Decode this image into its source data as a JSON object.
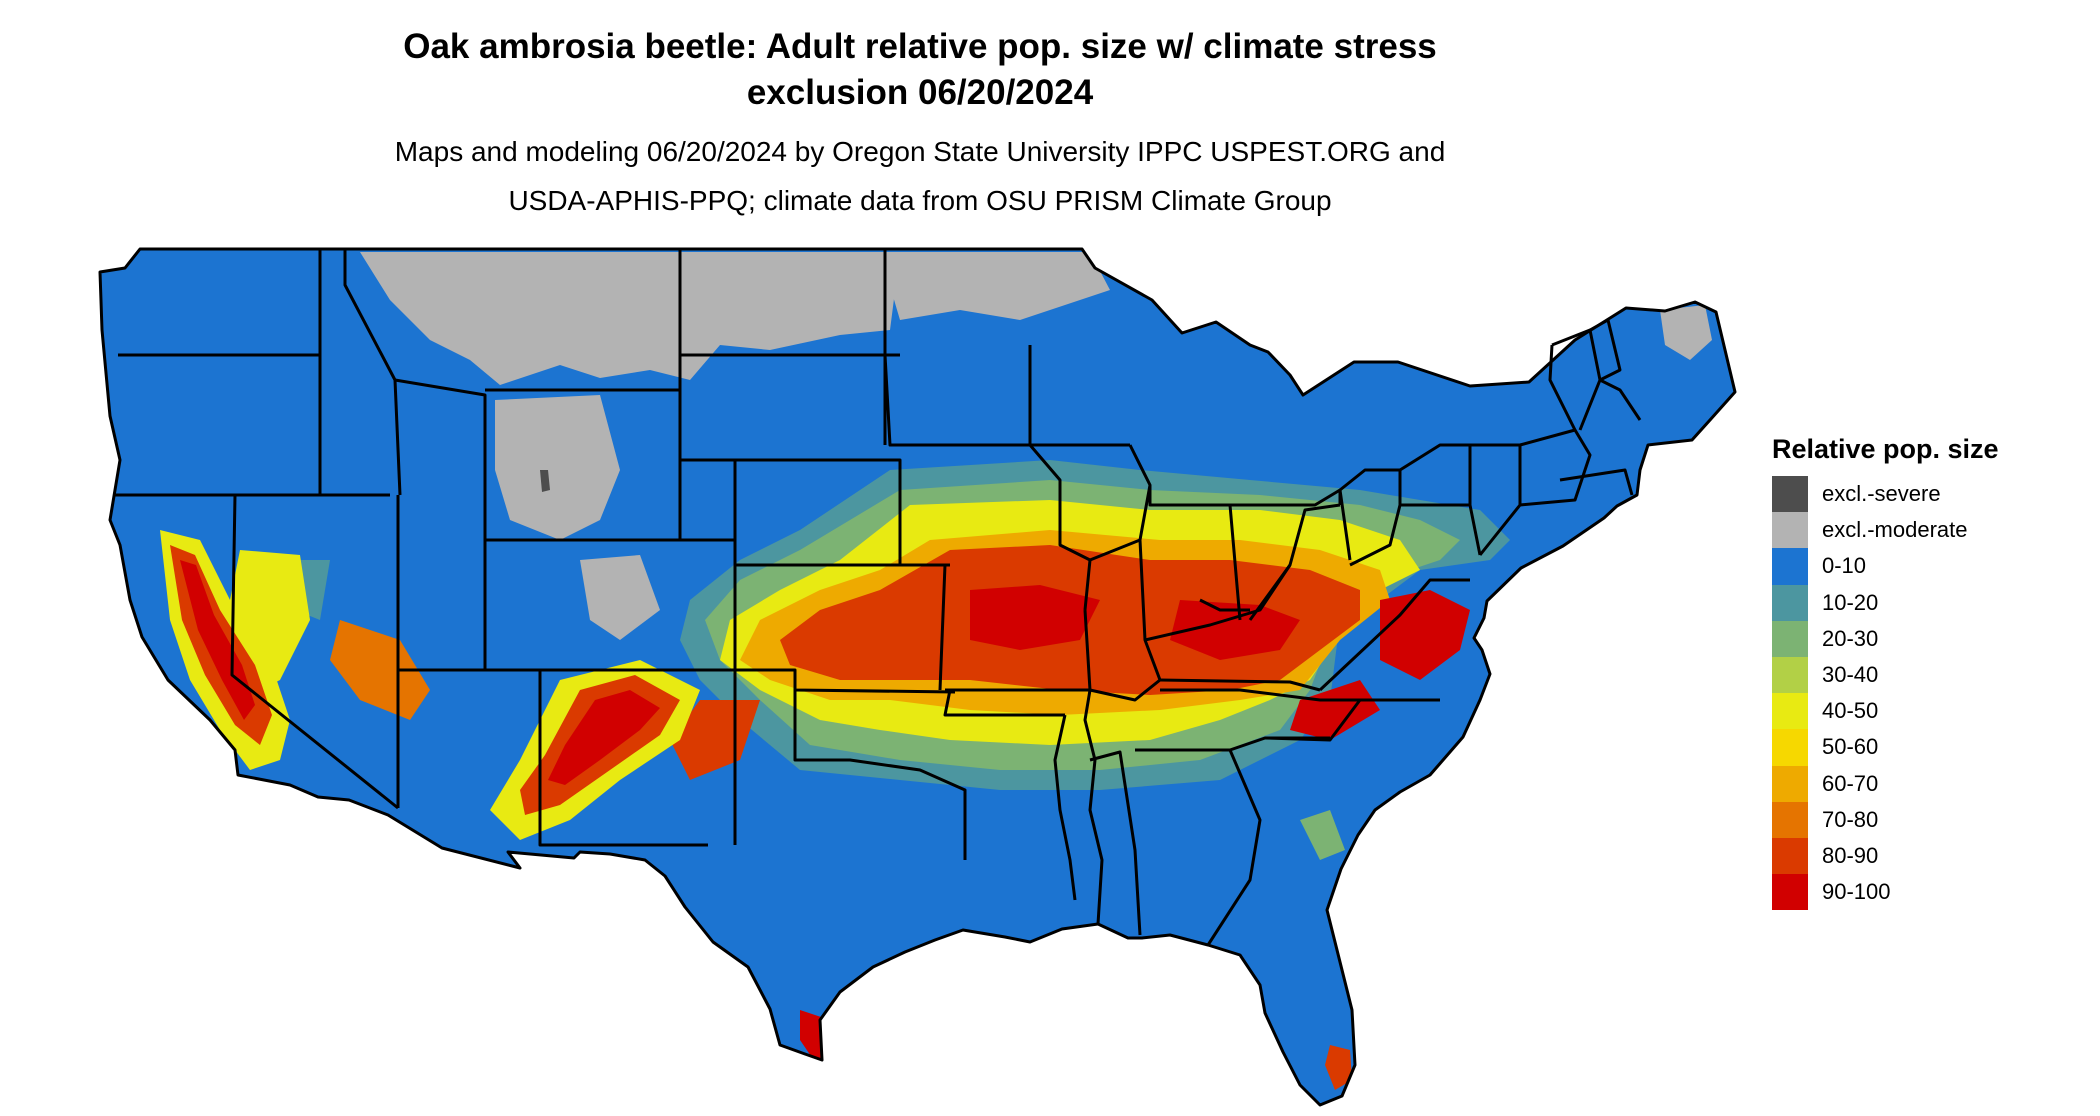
{
  "title_line1": "Oak ambrosia beetle: Adult relative pop. size w/ climate stress",
  "title_line2": "exclusion 06/20/2024",
  "subtitle_line1": "Maps and modeling 06/20/2024 by Oregon State University IPPC USPEST.ORG and",
  "subtitle_line2": "USDA-APHIS-PPQ; climate data from OSU PRISM Climate Group",
  "legend": {
    "title": "Relative pop. size",
    "items": [
      {
        "label": "excl.-severe",
        "color": "#4d4d4d"
      },
      {
        "label": "excl.-moderate",
        "color": "#b3b3b3"
      },
      {
        "label": "0-10",
        "color": "#1c74d1"
      },
      {
        "label": "10-20",
        "color": "#4c96a0"
      },
      {
        "label": "20-30",
        "color": "#7cb373"
      },
      {
        "label": "30-40",
        "color": "#b2d046"
      },
      {
        "label": "40-50",
        "color": "#e8ea12"
      },
      {
        "label": "50-60",
        "color": "#f6d800"
      },
      {
        "label": "60-70",
        "color": "#eeaa00"
      },
      {
        "label": "70-80",
        "color": "#e57400"
      },
      {
        "label": "80-90",
        "color": "#da3a00"
      },
      {
        "label": "90-100",
        "color": "#d10000"
      }
    ]
  }
}
